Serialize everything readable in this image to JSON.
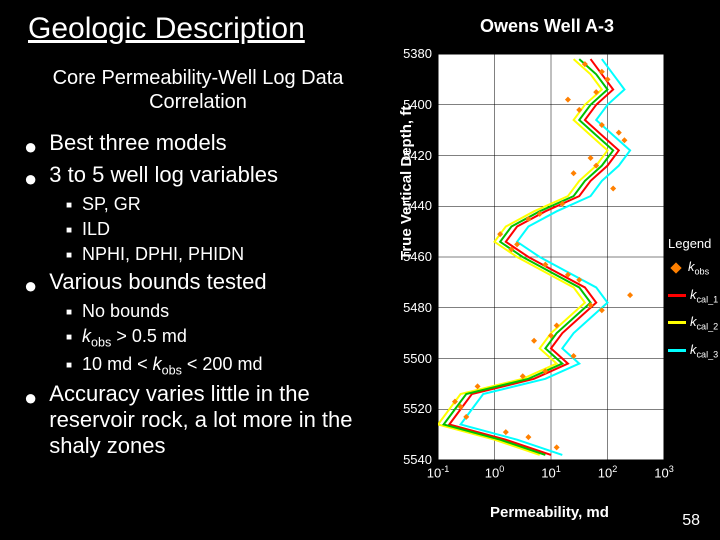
{
  "title": "Geologic Description",
  "subtitle": "Core Permeability-Well Log Data Correlation",
  "chart_title": "Owens Well A-3",
  "slide_number": "58",
  "bullets": [
    {
      "level": 1,
      "text": "Best three models"
    },
    {
      "level": 1,
      "text": "3 to 5 well log variables"
    },
    {
      "level": 2,
      "text": "SP, GR"
    },
    {
      "level": 2,
      "text": "ILD"
    },
    {
      "level": 2,
      "text": "NPHI, DPHI, PHIDN"
    },
    {
      "level": 1,
      "text": "Various bounds tested"
    },
    {
      "level": 2,
      "text": "No bounds"
    },
    {
      "level": 2,
      "html": true,
      "text": "kobs_gt_05"
    },
    {
      "level": 2,
      "html": true,
      "text": "kobs_range"
    },
    {
      "level": 1,
      "text": "Accuracy varies little in the reservoir rock, a lot more in the shaly zones"
    }
  ],
  "special_text": {
    "kobs_gt_05": {
      "prefix": "k",
      "sub": "obs",
      "suffix": " > 0.5 md"
    },
    "kobs_range": {
      "prefix": "10 md < ",
      "k": "k",
      "sub": "obs",
      "suffix": " < 200 md"
    }
  },
  "chart": {
    "type": "line+scatter",
    "ylabel": "True Vertical Depth, ft",
    "xlabel": "Permeability, md",
    "ylim": [
      5380,
      5540
    ],
    "yticks": [
      5380,
      5400,
      5420,
      5440,
      5460,
      5480,
      5500,
      5520,
      5540
    ],
    "xlim_log": [
      -1,
      3
    ],
    "xticks": [
      -1,
      0,
      1,
      2,
      3
    ],
    "xtick_labels": [
      "10⁻¹",
      "10⁰",
      "10¹",
      "10²",
      "10³"
    ],
    "background_color": "#ffffff",
    "grid_color": "#000000",
    "series": [
      {
        "name": "kcal_1",
        "type": "line",
        "color": "#ff0000",
        "width": 2,
        "points": [
          [
            1.7,
            5382
          ],
          [
            1.9,
            5388
          ],
          [
            2.1,
            5394
          ],
          [
            1.8,
            5400
          ],
          [
            1.6,
            5406
          ],
          [
            1.9,
            5412
          ],
          [
            2.2,
            5418
          ],
          [
            2.0,
            5424
          ],
          [
            1.7,
            5430
          ],
          [
            1.5,
            5436
          ],
          [
            0.9,
            5442
          ],
          [
            0.4,
            5448
          ],
          [
            0.2,
            5454
          ],
          [
            0.6,
            5460
          ],
          [
            1.1,
            5466
          ],
          [
            1.6,
            5472
          ],
          [
            1.8,
            5478
          ],
          [
            1.5,
            5484
          ],
          [
            1.2,
            5490
          ],
          [
            1.0,
            5496
          ],
          [
            1.3,
            5502
          ],
          [
            0.7,
            5508
          ],
          [
            -0.4,
            5514
          ],
          [
            -0.6,
            5520
          ],
          [
            -0.8,
            5526
          ],
          [
            0.2,
            5532
          ],
          [
            1.0,
            5538
          ]
        ]
      },
      {
        "name": "kcal_2",
        "type": "line",
        "color": "#ffff00",
        "width": 2,
        "points": [
          [
            1.4,
            5382
          ],
          [
            1.7,
            5388
          ],
          [
            1.9,
            5394
          ],
          [
            1.6,
            5400
          ],
          [
            1.4,
            5406
          ],
          [
            1.7,
            5412
          ],
          [
            2.0,
            5418
          ],
          [
            1.8,
            5424
          ],
          [
            1.5,
            5430
          ],
          [
            1.3,
            5436
          ],
          [
            0.7,
            5442
          ],
          [
            0.2,
            5448
          ],
          [
            0.0,
            5454
          ],
          [
            0.4,
            5460
          ],
          [
            0.9,
            5466
          ],
          [
            1.4,
            5472
          ],
          [
            1.6,
            5478
          ],
          [
            1.3,
            5484
          ],
          [
            1.0,
            5490
          ],
          [
            0.8,
            5496
          ],
          [
            1.1,
            5502
          ],
          [
            0.5,
            5508
          ],
          [
            -0.6,
            5514
          ],
          [
            -0.8,
            5520
          ],
          [
            -1.0,
            5526
          ],
          [
            0.0,
            5532
          ],
          [
            0.8,
            5538
          ]
        ]
      },
      {
        "name": "kcal_3",
        "type": "line",
        "color": "#00ffff",
        "width": 2,
        "points": [
          [
            1.9,
            5382
          ],
          [
            2.1,
            5388
          ],
          [
            2.3,
            5394
          ],
          [
            2.0,
            5400
          ],
          [
            1.8,
            5406
          ],
          [
            2.1,
            5412
          ],
          [
            2.4,
            5418
          ],
          [
            2.2,
            5424
          ],
          [
            1.9,
            5430
          ],
          [
            1.7,
            5436
          ],
          [
            1.1,
            5442
          ],
          [
            0.6,
            5448
          ],
          [
            0.4,
            5454
          ],
          [
            0.8,
            5460
          ],
          [
            1.3,
            5466
          ],
          [
            1.8,
            5472
          ],
          [
            2.0,
            5478
          ],
          [
            1.7,
            5484
          ],
          [
            1.4,
            5490
          ],
          [
            1.2,
            5496
          ],
          [
            1.5,
            5502
          ],
          [
            0.9,
            5508
          ],
          [
            -0.2,
            5514
          ],
          [
            -0.4,
            5520
          ],
          [
            -0.6,
            5526
          ],
          [
            0.4,
            5532
          ],
          [
            1.2,
            5538
          ]
        ]
      },
      {
        "name": "kcal_green",
        "type": "line",
        "color": "#00c000",
        "width": 2,
        "points": [
          [
            1.5,
            5382
          ],
          [
            1.8,
            5388
          ],
          [
            2.0,
            5394
          ],
          [
            1.7,
            5400
          ],
          [
            1.5,
            5406
          ],
          [
            1.8,
            5412
          ],
          [
            2.1,
            5418
          ],
          [
            1.9,
            5424
          ],
          [
            1.6,
            5430
          ],
          [
            1.4,
            5436
          ],
          [
            0.8,
            5442
          ],
          [
            0.3,
            5448
          ],
          [
            0.1,
            5454
          ],
          [
            0.5,
            5460
          ],
          [
            1.0,
            5466
          ],
          [
            1.5,
            5472
          ],
          [
            1.7,
            5478
          ],
          [
            1.4,
            5484
          ],
          [
            1.1,
            5490
          ],
          [
            0.9,
            5496
          ],
          [
            1.2,
            5502
          ],
          [
            0.6,
            5508
          ],
          [
            -0.5,
            5514
          ],
          [
            -0.7,
            5520
          ],
          [
            -0.9,
            5526
          ],
          [
            0.1,
            5532
          ],
          [
            0.9,
            5538
          ]
        ]
      },
      {
        "name": "kobs",
        "type": "scatter",
        "color": "#ff8000",
        "marker": "diamond",
        "size": 6,
        "points": [
          [
            1.6,
            5384
          ],
          [
            2.0,
            5390
          ],
          [
            1.8,
            5395
          ],
          [
            1.5,
            5402
          ],
          [
            1.9,
            5408
          ],
          [
            2.3,
            5414
          ],
          [
            1.7,
            5421
          ],
          [
            1.4,
            5427
          ],
          [
            2.1,
            5433
          ],
          [
            1.2,
            5439
          ],
          [
            0.6,
            5445
          ],
          [
            0.1,
            5451
          ],
          [
            0.3,
            5457
          ],
          [
            0.9,
            5463
          ],
          [
            1.5,
            5469
          ],
          [
            2.4,
            5475
          ],
          [
            1.9,
            5481
          ],
          [
            1.1,
            5487
          ],
          [
            0.7,
            5493
          ],
          [
            1.4,
            5499
          ],
          [
            0.9,
            5505
          ],
          [
            -0.3,
            5511
          ],
          [
            -0.7,
            5517
          ],
          [
            -0.5,
            5523
          ],
          [
            0.2,
            5529
          ],
          [
            1.1,
            5535
          ],
          [
            1.9,
            5387
          ],
          [
            1.3,
            5398
          ],
          [
            2.2,
            5411
          ],
          [
            1.8,
            5424
          ],
          [
            0.8,
            5443
          ],
          [
            0.4,
            5455
          ],
          [
            1.3,
            5467
          ],
          [
            1.7,
            5479
          ],
          [
            1.0,
            5491
          ],
          [
            0.5,
            5507
          ],
          [
            -0.6,
            5519
          ],
          [
            0.6,
            5531
          ]
        ]
      }
    ],
    "legend": {
      "title": "Legend",
      "items": [
        {
          "label": "kobs",
          "subscript": "obs",
          "type": "marker",
          "color": "#ff8000"
        },
        {
          "label": "kcal_1",
          "subscript": "cal_1",
          "type": "line",
          "color": "#ff0000"
        },
        {
          "label": "kcal_2",
          "subscript": "cal_2",
          "type": "line",
          "color": "#ffff00"
        },
        {
          "label": "kcal_3",
          "subscript": "cal_3",
          "type": "line",
          "color": "#00ffff"
        }
      ]
    }
  }
}
